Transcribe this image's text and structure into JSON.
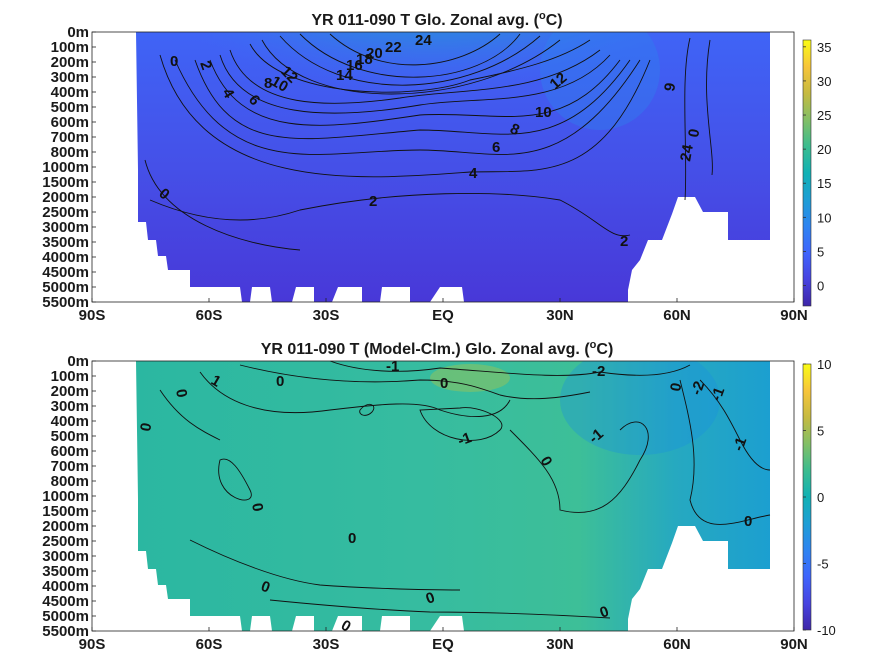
{
  "chart_data": [
    {
      "type": "heatmap",
      "title_parts": [
        "YR 011-090 T Glo. Zonal avg. (",
        "o",
        "C)"
      ],
      "y_ticks": [
        "0m",
        "100m",
        "200m",
        "300m",
        "400m",
        "500m",
        "600m",
        "700m",
        "800m",
        "1000m",
        "1500m",
        "2000m",
        "2500m",
        "3000m",
        "3500m",
        "4000m",
        "4500m",
        "5000m",
        "5500m"
      ],
      "x_ticks": [
        "90S",
        "60S",
        "30S",
        "EQ",
        "30N",
        "60N",
        "90N"
      ],
      "colorbar": {
        "min": -3,
        "max": 36,
        "ticks": [
          "35",
          "30",
          "25",
          "20",
          "15",
          "10",
          "5",
          "0"
        ]
      },
      "contour_labels": [
        "24",
        "22",
        "20",
        "18",
        "16",
        "14",
        "12",
        "10",
        "8",
        "6",
        "4",
        "2",
        "0",
        "12",
        "10",
        "8",
        "6",
        "4",
        "2",
        "2",
        "0",
        "9",
        "24",
        "0",
        "0",
        "2",
        "4",
        "6"
      ]
    },
    {
      "type": "heatmap",
      "title_parts": [
        "YR 011-090 T (Model-Clm.) Glo. Zonal avg. (",
        "o",
        "C)"
      ],
      "y_ticks": [
        "0m",
        "100m",
        "200m",
        "300m",
        "400m",
        "500m",
        "600m",
        "700m",
        "800m",
        "1000m",
        "1500m",
        "2000m",
        "2500m",
        "3000m",
        "3500m",
        "4000m",
        "4500m",
        "5000m",
        "5500m"
      ],
      "x_ticks": [
        "90S",
        "60S",
        "30S",
        "EQ",
        "30N",
        "60N",
        "90N"
      ],
      "colorbar": {
        "min": -10,
        "max": 10,
        "ticks": [
          "10",
          "5",
          "0",
          "-5",
          "-10"
        ]
      },
      "contour_labels": [
        "-1",
        "0",
        "0",
        "1",
        "0",
        "0",
        "-2",
        "0",
        "-2",
        "-1",
        "-1",
        "-1",
        "0",
        "-1",
        "0",
        "0",
        "0",
        "0",
        "0",
        "0",
        "0"
      ]
    }
  ],
  "colors": {
    "colormap": [
      "#3e26a8",
      "#4743e0",
      "#3f64fc",
      "#2e84f1",
      "#1e9ed5",
      "#11b1b4",
      "#3bbc8f",
      "#82bf66",
      "#c6ba40",
      "#f7c53a",
      "#f9fb15"
    ]
  }
}
